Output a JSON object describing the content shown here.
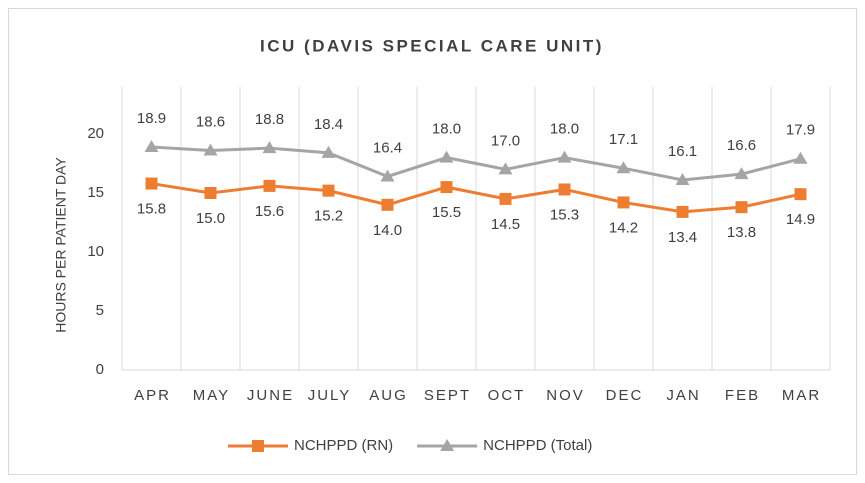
{
  "chart_data": {
    "type": "line",
    "title": "ICU (DAVIS SPECIAL CARE UNIT)",
    "y_label": "HOURS PER PATIENT DAY",
    "categories": [
      "APR",
      "MAY",
      "JUNE",
      "JULY",
      "AUG",
      "SEPT",
      "OCT",
      "NOV",
      "DEC",
      "JAN",
      "FEB",
      "MAR"
    ],
    "series": [
      {
        "name": "NCHPPD (RN)",
        "color": "#ed7d31",
        "marker": "square",
        "label_position": "below",
        "values": [
          15.8,
          15.0,
          15.6,
          15.2,
          14.0,
          15.5,
          14.5,
          15.3,
          14.2,
          13.4,
          13.8,
          14.9
        ],
        "value_labels": [
          "15.8",
          "15.0",
          "15.6",
          "15.2",
          "14.0",
          "15.5",
          "14.5",
          "15.3",
          "14.2",
          "13.4",
          "13.8",
          "14.9"
        ]
      },
      {
        "name": "NCHPPD (Total)",
        "color": "#a5a5a5",
        "marker": "triangle",
        "label_position": "above",
        "values": [
          18.9,
          18.6,
          18.8,
          18.4,
          16.4,
          18.0,
          17.0,
          18.0,
          17.1,
          16.1,
          16.6,
          17.9
        ],
        "value_labels": [
          "18.9",
          "18.6",
          "18.8",
          "18.4",
          "16.4",
          "18.0",
          "17.0",
          "18.0",
          "17.1",
          "16.1",
          "16.6",
          "17.9"
        ]
      }
    ],
    "ylim": [
      0,
      24
    ],
    "yticks": [
      0,
      5,
      10,
      15,
      20
    ],
    "grid": "vertical",
    "legend": "bottom"
  }
}
